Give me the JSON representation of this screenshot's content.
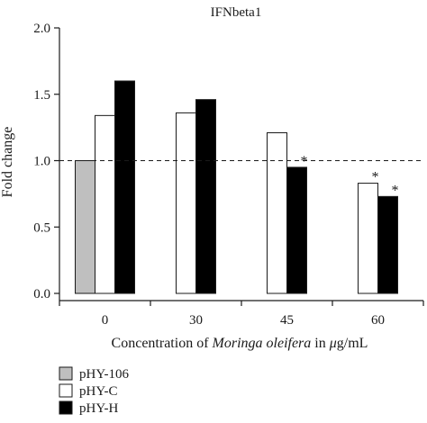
{
  "chart_data": {
    "type": "bar",
    "title": "IFNbeta1",
    "ylabel": "Fold change",
    "xlabel_parts": [
      {
        "text": "Concentration of ",
        "italic": false
      },
      {
        "text": "Moringa oleifera",
        "italic": true
      },
      {
        "text": " in ",
        "italic": false
      },
      {
        "text": "μ",
        "italic": true
      },
      {
        "text": "g/mL",
        "italic": false
      }
    ],
    "categories": [
      "0",
      "30",
      "45",
      "60"
    ],
    "ylim": [
      0,
      2.0
    ],
    "yticks": [
      "0.0",
      "0.5",
      "1.0",
      "1.5",
      "2.0"
    ],
    "ytick_values": [
      0,
      0.5,
      1.0,
      1.5,
      2.0
    ],
    "reference_line": 1.0,
    "series": [
      {
        "name": "pHY-106",
        "color": "#bfbfbf",
        "values": [
          1.0,
          null,
          null,
          null
        ],
        "significant": [
          false,
          false,
          false,
          false
        ]
      },
      {
        "name": "pHY-C",
        "color": "#ffffff",
        "values": [
          1.34,
          1.36,
          1.21,
          0.83
        ],
        "significant": [
          false,
          false,
          false,
          true
        ]
      },
      {
        "name": "pHY-H",
        "color": "#000000",
        "values": [
          1.6,
          1.46,
          0.95,
          0.73
        ],
        "significant": [
          false,
          false,
          true,
          true
        ]
      }
    ],
    "significance_marker": "*",
    "legend_position": "bottom-left",
    "grid": false
  }
}
